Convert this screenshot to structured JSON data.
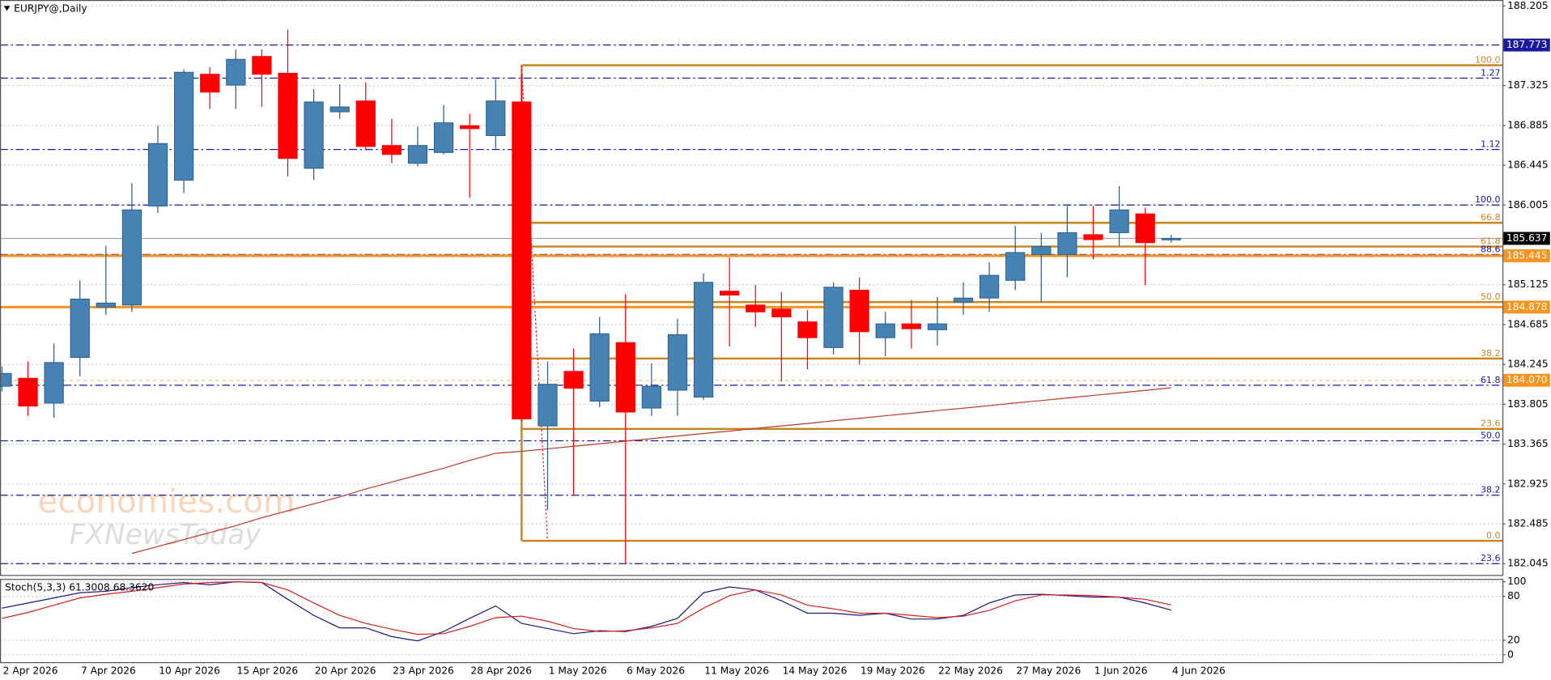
{
  "header": {
    "symbol": "EURJPY@,Daily"
  },
  "watermark": [
    "economies.com",
    "FXNewsToday"
  ],
  "chart_data": [
    {
      "type": "candlestick",
      "title": "EURJPY@,Daily",
      "categories": [
        "2 Apr 2026",
        null,
        null,
        "7 Apr 2026",
        null,
        null,
        "10 Apr 2026",
        null,
        null,
        "15 Apr 2026",
        null,
        null,
        "20 Apr 2026",
        null,
        null,
        "23 Apr 2026",
        null,
        null,
        "28 Apr 2026",
        null,
        null,
        "1 May 2026",
        null,
        null,
        "6 May 2026",
        null,
        null,
        "11 May 2026",
        null,
        null,
        "14 May 2026",
        null,
        null,
        "19 May 2026",
        null,
        null,
        "22 May 2026",
        null,
        null,
        "27 May 2026",
        null,
        null,
        "1 Jun 2026",
        null,
        null,
        "4 Jun 2026"
      ],
      "open": [
        184.004,
        184.092,
        183.818,
        184.322,
        184.879,
        184.901,
        185.995,
        186.28,
        187.45,
        187.33,
        187.647,
        187.461,
        186.411,
        187.035,
        187.155,
        186.663,
        186.466,
        186.586,
        186.882,
        186.772,
        187.144,
        183.566,
        184.168,
        183.84,
        184.486,
        183.763,
        183.96,
        183.884,
        185.054,
        184.901,
        184.857,
        184.715,
        184.431,
        185.065,
        184.54,
        184.693,
        184.628,
        184.934,
        184.978,
        185.174,
        185.459,
        185.459,
        185.678,
        185.7,
        185.908,
        185.634
      ],
      "high": [
        184.223,
        184.277,
        184.475,
        185.174,
        185.557,
        186.247,
        186.882,
        187.505,
        187.527,
        187.724,
        187.724,
        187.943,
        187.286,
        187.341,
        187.363,
        186.958,
        186.871,
        187.111,
        187.013,
        187.396,
        187.45,
        184.277,
        184.42,
        184.77,
        185.022,
        184.255,
        184.748,
        185.251,
        185.426,
        185.12,
        185.043,
        184.846,
        185.152,
        185.207,
        184.825,
        184.956,
        184.989,
        185.152,
        185.372,
        185.776,
        185.7,
        185.995,
        185.995,
        186.214,
        185.973,
        185.678
      ],
      "low": [
        183.949,
        183.676,
        183.654,
        184.113,
        184.792,
        184.825,
        185.919,
        186.137,
        187.067,
        187.067,
        187.089,
        186.323,
        186.28,
        186.958,
        186.608,
        186.466,
        186.433,
        186.564,
        186.083,
        186.63,
        183.621,
        182.636,
        182.8,
        183.774,
        182.045,
        183.676,
        183.676,
        183.851,
        184.442,
        184.66,
        184.059,
        184.19,
        184.354,
        184.244,
        184.333,
        184.42,
        184.453,
        184.792,
        184.825,
        185.065,
        184.934,
        185.207,
        185.404,
        185.557,
        185.12,
        185.59
      ],
      "close": [
        184.146,
        183.785,
        184.266,
        184.967,
        184.923,
        185.952,
        186.685,
        187.472,
        187.253,
        187.615,
        187.45,
        186.52,
        187.144,
        187.089,
        186.652,
        186.564,
        186.663,
        186.914,
        186.849,
        187.155,
        183.643,
        184.026,
        183.982,
        184.584,
        183.719,
        184.004,
        184.573,
        185.152,
        185.011,
        184.825,
        184.77,
        184.54,
        185.098,
        184.606,
        184.693,
        184.639,
        184.693,
        184.978,
        185.229,
        185.481,
        185.547,
        185.7,
        185.623,
        185.952,
        185.59,
        185.637
      ],
      "up_color": "#4682b4",
      "down_color": "#ff0000",
      "ylim": [
        181.92,
        188.27
      ],
      "yticks": [
        188.205,
        187.325,
        186.885,
        186.445,
        186.005,
        185.125,
        184.685,
        184.245,
        183.805,
        183.365,
        182.925,
        182.485,
        182.045
      ],
      "grid": true,
      "ma": {
        "color": "#c0392b",
        "values": [
          null,
          null,
          null,
          null,
          null,
          182.158,
          182.234,
          182.311,
          182.387,
          182.464,
          182.552,
          182.628,
          182.705,
          182.782,
          182.869,
          182.946,
          183.022,
          183.099,
          183.186,
          183.263,
          183.285,
          183.313,
          183.341,
          183.369,
          183.398,
          183.425,
          183.454,
          183.482,
          183.509,
          183.538,
          183.566,
          183.593,
          183.622,
          183.65,
          183.678,
          183.706,
          183.735,
          183.762,
          183.79,
          183.819,
          183.846,
          183.874,
          183.903,
          183.93,
          183.959,
          183.987
        ]
      },
      "fib_levels": [
        {
          "value": 187.549,
          "label": "100.0",
          "color": "#c8861c",
          "style": "anchor"
        },
        {
          "value": 187.407,
          "label": "1.27",
          "color": "#1a1aa0",
          "style": "full"
        },
        {
          "value": 186.619,
          "label": "1.12",
          "color": "#1a1aa0",
          "style": "full"
        },
        {
          "value": 186.006,
          "label": "100.0",
          "color": "#1a1aa0",
          "style": "full"
        },
        {
          "value": 185.809,
          "label": "66.8",
          "color": "#c8861c",
          "style": "anchor"
        },
        {
          "value": 185.547,
          "label": "61.8",
          "color": "#c8861c",
          "style": "anchor"
        },
        {
          "value": 185.459,
          "label": "88.6",
          "color": "#1a1aa0",
          "style": "full"
        },
        {
          "value": 184.934,
          "label": "50.0",
          "color": "#c8861c",
          "style": "anchor"
        },
        {
          "value": 184.31,
          "label": "38.2",
          "color": "#c8861c",
          "style": "anchor"
        },
        {
          "value": 184.015,
          "label": "61.8",
          "color": "#1a1aa0",
          "style": "full"
        },
        {
          "value": 183.533,
          "label": "23.6",
          "color": "#c8861c",
          "style": "anchor"
        },
        {
          "value": 183.402,
          "label": "50.0",
          "color": "#1a1aa0",
          "style": "full"
        },
        {
          "value": 182.8,
          "label": "38.2",
          "color": "#1a1aa0",
          "style": "full"
        },
        {
          "value": 182.297,
          "label": "0.0",
          "color": "#c8861c",
          "style": "anchor"
        },
        {
          "value": 182.045,
          "label": "23.6",
          "color": "#1a1aa0",
          "style": "full"
        }
      ],
      "price_levels": [
        {
          "value": 187.773,
          "label": "187.773",
          "color": "#1a1aa0",
          "line": "dashdot"
        },
        {
          "value": 185.637,
          "label": "185.637",
          "color": "#000000",
          "line": "solid"
        },
        {
          "value": 185.445,
          "label": "185.445",
          "color": "#f7931e",
          "line": "thick"
        },
        {
          "value": 184.878,
          "label": "184.878",
          "color": "#f7931e",
          "line": "thick"
        },
        {
          "value": 184.07,
          "label": "184.070",
          "color": "#f7931e",
          "line": "dashed"
        }
      ]
    },
    {
      "type": "line",
      "title": "Stoch(5,3,3) 61.3008 68.3620",
      "series": [
        {
          "color": "#1a1a80",
          "values": [
            64,
            71,
            78,
            85,
            87,
            92,
            96,
            99,
            96,
            100,
            99,
            76,
            54,
            37,
            37,
            25,
            19,
            32,
            50,
            67,
            43,
            36,
            29,
            33,
            32,
            39,
            50,
            85,
            93,
            89,
            74,
            57,
            57,
            54,
            57,
            49,
            49,
            54,
            71,
            82,
            83,
            81,
            79,
            79,
            71,
            61.3008
          ]
        },
        {
          "color": "#d62020",
          "values": [
            50,
            58,
            68,
            78,
            83,
            87,
            92,
            97,
            99,
            100,
            99,
            89,
            71,
            54,
            43,
            35,
            28,
            29,
            39,
            51,
            53,
            46,
            36,
            32,
            33,
            37,
            43,
            64,
            81,
            89,
            82,
            68,
            63,
            57,
            57,
            54,
            51,
            53,
            61,
            74,
            82,
            82,
            81,
            79,
            76,
            68.362
          ]
        }
      ],
      "ylim": [
        -10,
        104
      ],
      "yticks": [
        100,
        80,
        20,
        0
      ],
      "grid": true
    }
  ]
}
